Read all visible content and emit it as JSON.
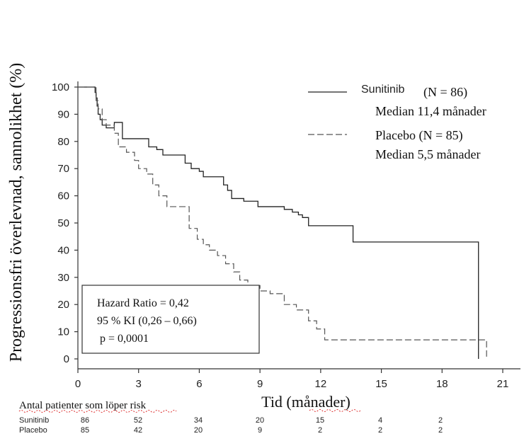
{
  "chart_data": {
    "type": "line",
    "ylabel": "Progressionsfri överlevnad, sannolikhet (%)",
    "xlabel": "Tid (månader)",
    "xlim": [
      0,
      21
    ],
    "ylim": [
      0,
      100
    ],
    "x_ticks": [
      0,
      3,
      6,
      9,
      12,
      15,
      18,
      21
    ],
    "y_ticks": [
      0,
      10,
      20,
      30,
      40,
      50,
      60,
      70,
      80,
      90,
      100
    ],
    "grid": false,
    "legend_position": "top-right",
    "series": [
      {
        "name": "Sunitinib",
        "style": "solid",
        "n_label": "(N = 86)",
        "median_label": "Median 11,4 månader",
        "x": [
          0,
          0.8,
          0.85,
          0.9,
          0.95,
          1.0,
          1.1,
          1.2,
          1.4,
          1.8,
          2.2,
          2.7,
          3.3,
          3.5,
          3.9,
          4.2,
          5.0,
          5.3,
          5.6,
          6.0,
          6.2,
          7.2,
          7.4,
          7.6,
          8.2,
          8.9,
          10.2,
          10.6,
          10.9,
          11.1,
          11.4,
          13.0,
          13.6,
          19.8,
          19.8
        ],
        "y": [
          100,
          100,
          98,
          96,
          93,
          90,
          88,
          86,
          85,
          87,
          81,
          81,
          81,
          78,
          77,
          75,
          75,
          72,
          70,
          69,
          67,
          64,
          62,
          59,
          58,
          56,
          55,
          54,
          53,
          52,
          49,
          49,
          43,
          43,
          0
        ]
      },
      {
        "name": "Placebo",
        "style": "dashed",
        "n_label": "(N = 85)",
        "median_label": "Median 5,5 månader",
        "x": [
          0,
          0.8,
          0.9,
          1.0,
          1.2,
          1.4,
          1.8,
          2.0,
          2.4,
          2.8,
          3.0,
          3.4,
          3.7,
          4.0,
          4.4,
          5.3,
          5.5,
          5.9,
          6.2,
          6.5,
          6.9,
          7.3,
          7.7,
          8.0,
          8.4,
          9.0,
          9.5,
          10.2,
          10.8,
          11.4,
          11.8,
          12.2,
          19.8,
          20.2,
          20.2
        ],
        "y": [
          100,
          100,
          95,
          92,
          88,
          86,
          83,
          78,
          76,
          73,
          70,
          68,
          64,
          60,
          56,
          56,
          48,
          44,
          42,
          40,
          38,
          35,
          32,
          29,
          27,
          25,
          24,
          20,
          18,
          14,
          11,
          7,
          7,
          7,
          0
        ]
      }
    ],
    "annotation": {
      "lines": [
        "Hazard Ratio = 0,42",
        "95 % KI (0,26 – 0,66)",
        "p = 0,0001"
      ]
    },
    "risk_table": {
      "title": "Antal patienter som löper risk",
      "rows": [
        {
          "label": "Sunitinib",
          "values": [
            86,
            52,
            34,
            20,
            15,
            4,
            2
          ]
        },
        {
          "label": "Placebo",
          "values": [
            85,
            42,
            20,
            9,
            2,
            2,
            2
          ]
        }
      ]
    }
  },
  "colors": {
    "solid": "#222222",
    "dashed": "#555555",
    "spellcheck": "#dd3333"
  }
}
